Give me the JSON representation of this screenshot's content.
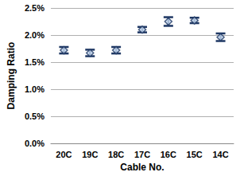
{
  "chart_data": {
    "type": "scatter",
    "x_label": "Cable No.",
    "y_label": "Damping Ratio",
    "categories": [
      "20C",
      "19C",
      "18C",
      "17C",
      "16C",
      "15C",
      "14C"
    ],
    "values": [
      1.72,
      1.67,
      1.72,
      2.1,
      2.25,
      2.27,
      1.96
    ],
    "errors": [
      0.06,
      0.06,
      0.06,
      0.05,
      0.08,
      0.05,
      0.07
    ],
    "color": "#1f3864",
    "marker": "diamond",
    "ylim": [
      0,
      2.5
    ],
    "yticks": [
      {
        "value": 0,
        "label": "0.0%"
      },
      {
        "value": 0.5,
        "label": "0.5%"
      },
      {
        "value": 1,
        "label": "1.0%"
      },
      {
        "value": 1.5,
        "label": "1.5%"
      },
      {
        "value": 2,
        "label": "2.0%"
      },
      {
        "value": 2.5,
        "label": "2.5%"
      }
    ],
    "grid": true
  }
}
